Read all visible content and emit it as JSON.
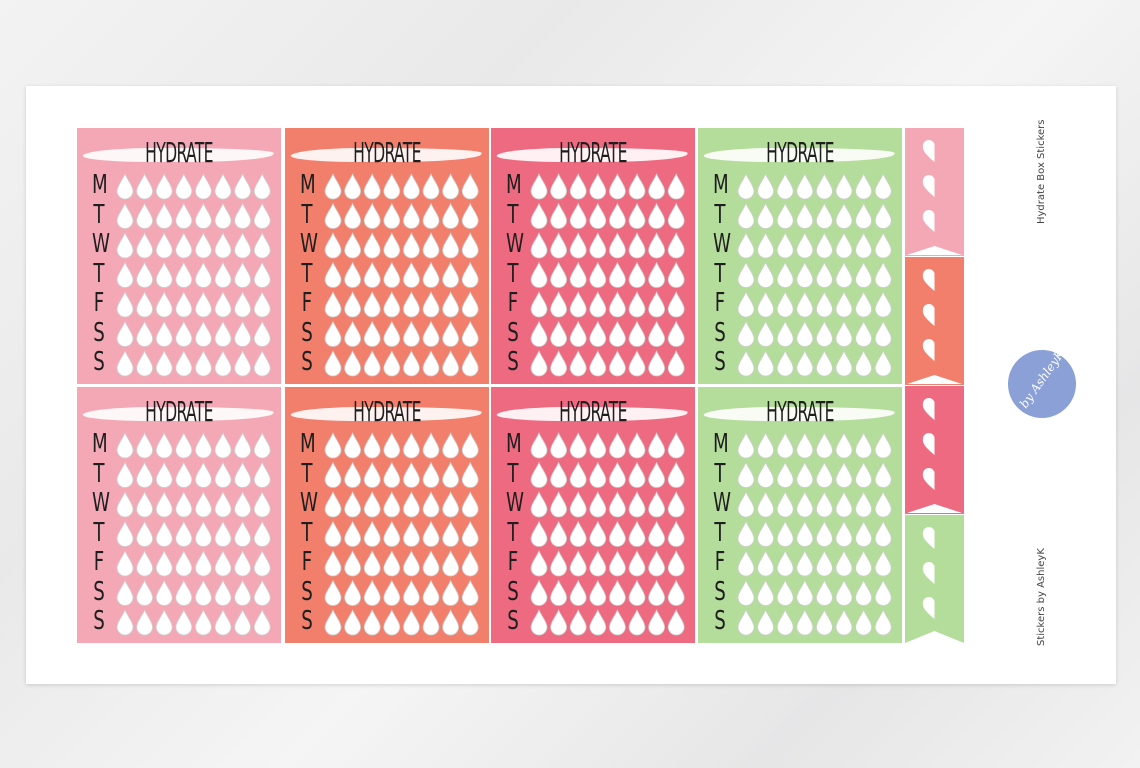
{
  "sticker": {
    "title": "HYDRATE",
    "days": [
      "M",
      "T",
      "W",
      "T",
      "F",
      "S",
      "S"
    ],
    "drops_per_day": 8
  },
  "colors": {
    "pink": "#f4a8b6",
    "coral": "#f27f6b",
    "rose": "#ee6a80",
    "green": "#b4dc9a"
  },
  "boxes": [
    "pink",
    "coral",
    "rose",
    "green",
    "pink",
    "coral",
    "rose",
    "green"
  ],
  "tabs": [
    "pink",
    "coral",
    "rose",
    "green"
  ],
  "tab_icon": "heart-icon",
  "sheet": {
    "name": "Hydrate Box Stickers",
    "brand": "Stickers by AshleyK",
    "logo_text": "by AshleyK"
  }
}
